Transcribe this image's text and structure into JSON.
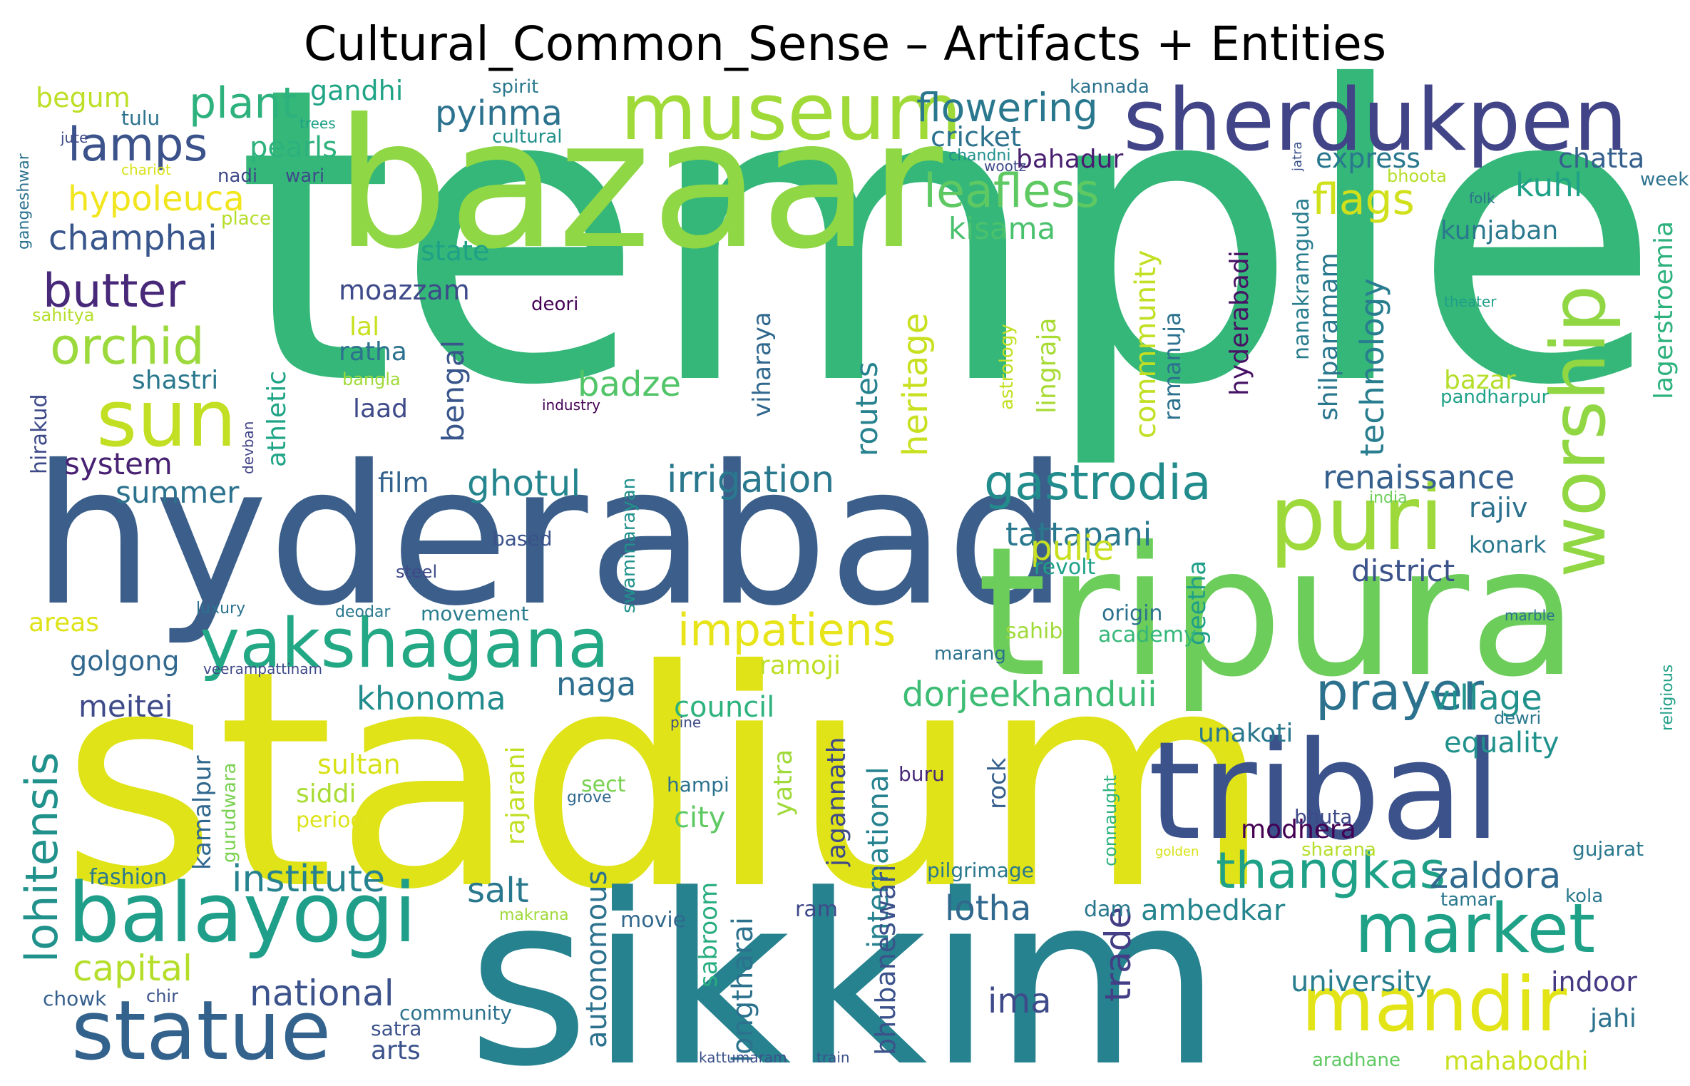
{
  "title": "Cultural_Common_Sense – Artifacts + Entities",
  "palette": "viridis",
  "words": [
    {
      "text": "temple",
      "color": "#35b779"
    },
    {
      "text": "stadium",
      "color": "#dfe318"
    },
    {
      "text": "hyderabad",
      "color": "#3b5f8a"
    },
    {
      "text": "sikkim",
      "color": "#26828e"
    },
    {
      "text": "bazaar",
      "color": "#8fd744"
    },
    {
      "text": "tripura",
      "color": "#6ccd5a"
    },
    {
      "text": "tribal",
      "color": "#3b528b"
    },
    {
      "text": "sherdukpen",
      "color": "#414487"
    },
    {
      "text": "museum",
      "color": "#a0da39"
    },
    {
      "text": "sun",
      "color": "#c2df23"
    },
    {
      "text": "balayogi",
      "color": "#1f9e89"
    },
    {
      "text": "yakshagana",
      "color": "#22a884"
    },
    {
      "text": "puri",
      "color": "#9dd93b"
    },
    {
      "text": "worship",
      "color": "#90d743"
    },
    {
      "text": "mandir",
      "color": "#e2e418"
    },
    {
      "text": "market",
      "color": "#1fa187"
    },
    {
      "text": "statue",
      "color": "#33638d"
    },
    {
      "text": "lamps",
      "color": "#3b528b"
    },
    {
      "text": "orchid",
      "color": "#9bd93c"
    },
    {
      "text": "butter",
      "color": "#482878"
    },
    {
      "text": "prayer",
      "color": "#2c728e"
    },
    {
      "text": "gastrodia",
      "color": "#228c8d"
    },
    {
      "text": "impatiens",
      "color": "#e7e419"
    },
    {
      "text": "thangkas",
      "color": "#1fa187"
    },
    {
      "text": "leafless",
      "color": "#5ec962"
    },
    {
      "text": "flags",
      "color": "#d0e11c"
    },
    {
      "text": "lohitensis",
      "color": "#21918c"
    },
    {
      "text": "plant",
      "color": "#2db27d"
    },
    {
      "text": "flowering",
      "color": "#2a788e"
    },
    {
      "text": "hypoleuca",
      "color": "#f1e51d"
    },
    {
      "text": "champhai",
      "color": "#39568c"
    },
    {
      "text": "pyinma",
      "color": "#2c728e"
    },
    {
      "text": "village",
      "color": "#21918c"
    },
    {
      "text": "dorjeekhanduii",
      "color": "#3dbc74"
    },
    {
      "text": "irrigation",
      "color": "#2a788e"
    },
    {
      "text": "institute",
      "color": "#26828e"
    },
    {
      "text": "renaissance",
      "color": "#355f8d"
    },
    {
      "text": "tattapani",
      "color": "#2a788e"
    },
    {
      "text": "ghotul",
      "color": "#25858e"
    },
    {
      "text": "badze",
      "color": "#52c569"
    },
    {
      "text": "kisama",
      "color": "#4ac16d"
    },
    {
      "text": "zaldora",
      "color": "#31688e"
    },
    {
      "text": "capital",
      "color": "#b5de2b"
    },
    {
      "text": "national",
      "color": "#3b528b"
    },
    {
      "text": "khonoma",
      "color": "#228c8d"
    },
    {
      "text": "lotha",
      "color": "#31688e"
    },
    {
      "text": "salt",
      "color": "#2a788e"
    },
    {
      "text": "naga",
      "color": "#2e6e8e"
    },
    {
      "text": "council",
      "color": "#2db27d"
    },
    {
      "text": "university",
      "color": "#287d8e"
    },
    {
      "text": "kuhl",
      "color": "#1fa187"
    },
    {
      "text": "meitei",
      "color": "#3e4a89"
    },
    {
      "text": "system",
      "color": "#482173"
    },
    {
      "text": "summer",
      "color": "#2c728e"
    },
    {
      "text": "pearls",
      "color": "#2db27d"
    },
    {
      "text": "gandhi",
      "color": "#20a486"
    },
    {
      "text": "begum",
      "color": "#bddf26"
    },
    {
      "text": "cricket",
      "color": "#2c728e"
    },
    {
      "text": "express",
      "color": "#2a788e"
    },
    {
      "text": "chatta",
      "color": "#355f8d"
    },
    {
      "text": "bahadur",
      "color": "#481f70"
    },
    {
      "text": "kunjaban",
      "color": "#2a788e"
    },
    {
      "text": "pulie",
      "color": "#c8e020"
    },
    {
      "text": "rajiv",
      "color": "#2c728e"
    },
    {
      "text": "district",
      "color": "#3b528b"
    },
    {
      "text": "equality",
      "color": "#21918c"
    },
    {
      "text": "unakoti",
      "color": "#2a788e"
    },
    {
      "text": "indoor",
      "color": "#443983"
    },
    {
      "text": "jahi",
      "color": "#2c728e"
    },
    {
      "text": "mahabodhi",
      "color": "#c8e020"
    },
    {
      "text": "ima",
      "color": "#3e4a89"
    },
    {
      "text": "trade",
      "color": "#433e85"
    },
    {
      "text": "modhera",
      "color": "#440154"
    },
    {
      "text": "ambedkar",
      "color": "#25858e"
    },
    {
      "text": "film",
      "color": "#33638d"
    },
    {
      "text": "moazzam",
      "color": "#3e4a89"
    },
    {
      "text": "ratha",
      "color": "#2c728e"
    },
    {
      "text": "lal",
      "color": "#c8e020"
    },
    {
      "text": "shastri",
      "color": "#2a788e"
    },
    {
      "text": "laad",
      "color": "#3e4a89"
    },
    {
      "text": "state",
      "color": "#1fa187"
    },
    {
      "text": "sultan",
      "color": "#d8e219"
    },
    {
      "text": "siddi",
      "color": "#a8db34"
    },
    {
      "text": "golgong",
      "color": "#31688e"
    },
    {
      "text": "areas",
      "color": "#dde318"
    },
    {
      "text": "arts",
      "color": "#3b528b"
    },
    {
      "text": "ramoji",
      "color": "#bddf26"
    },
    {
      "text": "city",
      "color": "#5ec962"
    },
    {
      "text": "bazar",
      "color": "#b5de2b"
    },
    {
      "text": "konark",
      "color": "#2a788e"
    },
    {
      "text": "sabroom",
      "color": "#27ad81"
    },
    {
      "text": "routes",
      "color": "#26828e"
    },
    {
      "text": "heritage",
      "color": "#c8e020"
    },
    {
      "text": "bengal",
      "color": "#39568c"
    },
    {
      "text": "athletic",
      "color": "#20a486"
    },
    {
      "text": "commmunity",
      "color": "#c2df23"
    },
    {
      "text": "ramanuja",
      "color": "#2c728e"
    },
    {
      "text": "hyderabadi",
      "color": "#471365"
    },
    {
      "text": "nanakramguda",
      "color": "#287d8e"
    },
    {
      "text": "shilparamam",
      "color": "#2a788e"
    },
    {
      "text": "technology",
      "color": "#287d8e"
    },
    {
      "text": "lagerstroemia",
      "color": "#2db27d"
    },
    {
      "text": "lingraja",
      "color": "#a8db34"
    },
    {
      "text": "astrology",
      "color": "#c2df23"
    },
    {
      "text": "viharaya",
      "color": "#31688e"
    },
    {
      "text": "geetha",
      "color": "#1f9e89"
    },
    {
      "text": "kamalpur",
      "color": "#31688e"
    },
    {
      "text": "rock",
      "color": "#355f8d"
    },
    {
      "text": "international",
      "color": "#26828e"
    },
    {
      "text": "jagannath",
      "color": "#3e4a89"
    },
    {
      "text": "yatra",
      "color": "#a0da39"
    },
    {
      "text": "autonomous",
      "color": "#2c728e"
    },
    {
      "text": "longtharai",
      "color": "#2c728e"
    },
    {
      "text": "bhubaneswari",
      "color": "#3b528b"
    },
    {
      "text": "rajarani",
      "color": "#c2df23"
    },
    {
      "text": "origin",
      "color": "#2c728e"
    },
    {
      "text": "academy",
      "color": "#35b779"
    },
    {
      "text": "sahib",
      "color": "#a0da39"
    },
    {
      "text": "revolt",
      "color": "#1fa187"
    },
    {
      "text": "dam",
      "color": "#2a788e"
    },
    {
      "text": "movie",
      "color": "#31688e"
    },
    {
      "text": "ram",
      "color": "#3e4a89"
    },
    {
      "text": "buru",
      "color": "#482878"
    },
    {
      "text": "hampi",
      "color": "#2c728e"
    },
    {
      "text": "sect",
      "color": "#7ad151"
    },
    {
      "text": "marang",
      "color": "#2c728e"
    },
    {
      "text": "bhuta",
      "color": "#3e4a89"
    },
    {
      "text": "sharana",
      "color": "#b5de2b"
    },
    {
      "text": "gujarat",
      "color": "#2a788e"
    },
    {
      "text": "kola",
      "color": "#2a788e"
    },
    {
      "text": "tamar",
      "color": "#2a788e"
    },
    {
      "text": "pandharpur",
      "color": "#1fa187"
    },
    {
      "text": "period",
      "color": "#dde318"
    },
    {
      "text": "fashion",
      "color": "#2a788e"
    },
    {
      "text": "community",
      "color": "#2c728e"
    },
    {
      "text": "satra",
      "color": "#3b528b"
    },
    {
      "text": "chowk",
      "color": "#355f8d"
    },
    {
      "text": "chir",
      "color": "#3b528b"
    },
    {
      "text": "gurudwara",
      "color": "#7ad151"
    },
    {
      "text": "swaminarayan",
      "color": "#21918c"
    },
    {
      "text": "hirakud",
      "color": "#3e4a89"
    },
    {
      "text": "pilgrimage",
      "color": "#2a788e"
    },
    {
      "text": "connaught",
      "color": "#2db27d"
    },
    {
      "text": "movement",
      "color": "#287d8e"
    },
    {
      "text": "bangla",
      "color": "#a0da39"
    },
    {
      "text": "devban",
      "color": "#414487"
    },
    {
      "text": "industry",
      "color": "#440154"
    },
    {
      "text": "deori",
      "color": "#440154"
    },
    {
      "text": "steel",
      "color": "#3e4a89"
    },
    {
      "text": "luxury",
      "color": "#2c728e"
    },
    {
      "text": "deodar",
      "color": "#2a788e"
    },
    {
      "text": "based",
      "color": "#3b528b"
    },
    {
      "text": "veerampattinam",
      "color": "#3e4a89"
    },
    {
      "text": "pine",
      "color": "#3e4a89"
    },
    {
      "text": "grove",
      "color": "#31688e"
    },
    {
      "text": "makrana",
      "color": "#a0da39"
    },
    {
      "text": "golden",
      "color": "#d8e219"
    },
    {
      "text": "kattumaram",
      "color": "#3b528b"
    },
    {
      "text": "train",
      "color": "#3b528b"
    },
    {
      "text": "aradhane",
      "color": "#5ec962"
    },
    {
      "text": "dewri",
      "color": "#2a788e"
    },
    {
      "text": "religious",
      "color": "#1fa187"
    },
    {
      "text": "marble",
      "color": "#2c728e"
    },
    {
      "text": "india",
      "color": "#6ccd5a"
    },
    {
      "text": "theater",
      "color": "#1f9e89"
    },
    {
      "text": "folk",
      "color": "#2c728e"
    },
    {
      "text": "week",
      "color": "#2c728e"
    },
    {
      "text": "bhoota",
      "color": "#b5de2b"
    },
    {
      "text": "jatra",
      "color": "#3b528b"
    },
    {
      "text": "wootz",
      "color": "#3e4a89"
    },
    {
      "text": "chandni",
      "color": "#21918c"
    },
    {
      "text": "kannada",
      "color": "#2c728e"
    },
    {
      "text": "spirit",
      "color": "#2a788e"
    },
    {
      "text": "trees",
      "color": "#1fa187"
    },
    {
      "text": "tulu",
      "color": "#2c728e"
    },
    {
      "text": "cultural",
      "color": "#21918c"
    },
    {
      "text": "jute",
      "color": "#3e4a89"
    },
    {
      "text": "chariot",
      "color": "#d8e219"
    },
    {
      "text": "nadi",
      "color": "#3e4a89"
    },
    {
      "text": "wari",
      "color": "#3e4a89"
    },
    {
      "text": "gangeshwar",
      "color": "#2c728e"
    },
    {
      "text": "gangeshwar2",
      "color": "#fde725"
    },
    {
      "text": "place",
      "color": "#b5de2b"
    },
    {
      "text": "sahitya",
      "color": "#b5de2b"
    }
  ]
}
